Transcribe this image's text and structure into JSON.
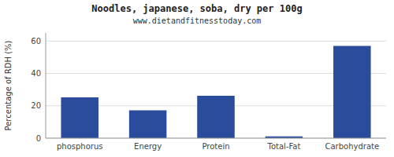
{
  "chart_data": {
    "type": "bar",
    "title": "Noodles, japanese, soba, dry per 100g",
    "subtitle": "www.dietandfitnesstoday.com",
    "y_label": "Percentage of RDH (%)",
    "categories": [
      "phosphorus",
      "Energy",
      "Protein",
      "Total-Fat",
      "Carbohydrate"
    ],
    "values": [
      25.2,
      17.2,
      26.2,
      1.1,
      57.0
    ],
    "color": "#2B4B9B",
    "ylim": [
      0,
      65
    ],
    "yticks": [
      0,
      20,
      40,
      60
    ],
    "grid": true
  }
}
